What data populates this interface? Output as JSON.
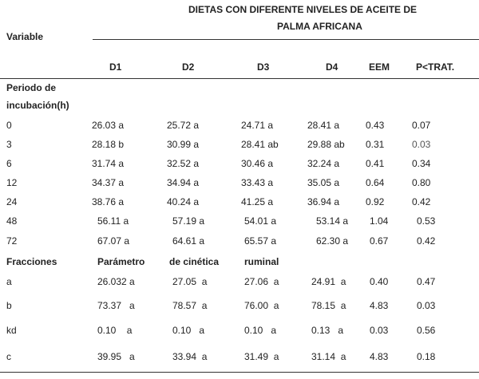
{
  "table": {
    "header": {
      "variable_label": "Variable",
      "group_line1": "DIETAS CON DIFERENTE NIVELES DE ACEITE DE",
      "group_line2": "PALMA AFRICANA",
      "columns": [
        "D1",
        "D2",
        "D3",
        "D4",
        "EEM",
        "P<TRAT."
      ]
    },
    "section1": {
      "title_line1": "Periodo de",
      "title_line2": "incubación(h)",
      "rows": [
        {
          "label": "0",
          "d1": "26.03 a",
          "d2": "25.72 a",
          "d3": "24.71 a",
          "d4": "28.41 a",
          "eem": "0.43",
          "p": "0.07"
        },
        {
          "label": "3",
          "d1": "28.18 b",
          "d2": "30.99 a",
          "d3": "28.41 ab",
          "d4": "29.88 ab",
          "eem": "0.31",
          "p": "0.03"
        },
        {
          "label": "6",
          "d1": "31.74 a",
          "d2": "32.52 a",
          "d3": "30.46 a",
          "d4": "32.24 a",
          "eem": "0.41",
          "p": "0.34"
        },
        {
          "label": "12",
          "d1": "34.37 a",
          "d2": "34.94 a",
          "d3": "33.43 a",
          "d4": "35.05 a",
          "eem": "0.64",
          "p": "0.80"
        },
        {
          "label": "24",
          "d1": "38.76 a",
          "d2": "40.24 a",
          "d3": "41.25 a",
          "d4": "36.94 a",
          "eem": "0.92",
          "p": "0.42"
        },
        {
          "label": "48",
          "d1": "56.11 a",
          "d2": "57.19 a",
          "d3": "54.01 a",
          "d4": "53.14 a",
          "eem": "1.04",
          "p": "0.53"
        },
        {
          "label": "72",
          "d1": "67.07 a",
          "d2": "64.61 a",
          "d3": "65.57 a",
          "d4": "62.30 a",
          "eem": "0.67",
          "p": "0.42"
        }
      ]
    },
    "section2": {
      "title": "Fracciones",
      "sub1": "Parámetro",
      "sub2": "de cinética",
      "sub3": "ruminal",
      "rows": [
        {
          "label": "a",
          "d1": "26.032 a",
          "d2": "27.05  a",
          "d3": "27.06  a",
          "d4": "24.91  a",
          "eem": "0.40",
          "p": "0.47"
        },
        {
          "label": "b",
          "d1": "73.37   a",
          "d2": "78.57  a",
          "d3": "76.00  a",
          "d4": "78.15  a",
          "eem": "4.83",
          "p": "0.03"
        },
        {
          "label": "kd",
          "d1": "0.10    a",
          "d2": "0.10   a",
          "d3": "0.10   a",
          "d4": "0.13   a",
          "eem": "0.03",
          "p": "0.56"
        },
        {
          "label": "c",
          "d1": "39.95   a",
          "d2": "33.94  a",
          "d3": "31.49  a",
          "d4": "31.14  a",
          "eem": "4.83",
          "p": "0.18"
        }
      ]
    }
  }
}
